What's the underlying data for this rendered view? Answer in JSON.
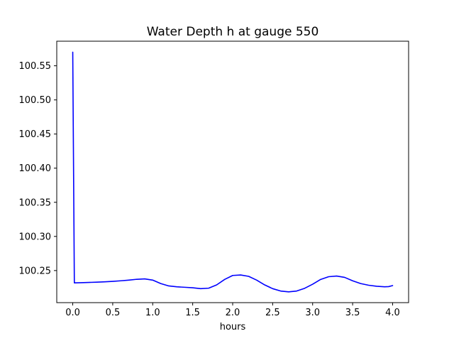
{
  "figure": {
    "background": "#ffffff",
    "axes_color": "#000000"
  },
  "chart_data": {
    "type": "line",
    "title": "Water Depth h at gauge 550",
    "xlabel": "hours",
    "ylabel": "",
    "grid": false,
    "legend": null,
    "xlim": [
      -0.2,
      4.2
    ],
    "ylim": [
      100.203,
      100.586
    ],
    "xticks": [
      0.0,
      0.5,
      1.0,
      1.5,
      2.0,
      2.5,
      3.0,
      3.5,
      4.0
    ],
    "xtick_labels": [
      "0.0",
      "0.5",
      "1.0",
      "1.5",
      "2.0",
      "2.5",
      "3.0",
      "3.5",
      "4.0"
    ],
    "yticks": [
      100.25,
      100.3,
      100.35,
      100.4,
      100.45,
      100.5,
      100.55
    ],
    "ytick_labels": [
      "100.25",
      "100.30",
      "100.35",
      "100.40",
      "100.45",
      "100.50",
      "100.55"
    ],
    "series": [
      {
        "name": "h",
        "color": "#0000ff",
        "line_width": 1.6,
        "x": [
          0.0,
          0.02,
          0.1,
          0.2,
          0.3,
          0.4,
          0.5,
          0.6,
          0.7,
          0.8,
          0.9,
          1.0,
          1.1,
          1.2,
          1.3,
          1.4,
          1.5,
          1.6,
          1.7,
          1.8,
          1.9,
          2.0,
          2.1,
          2.2,
          2.3,
          2.4,
          2.5,
          2.6,
          2.7,
          2.8,
          2.9,
          3.0,
          3.1,
          3.2,
          3.3,
          3.4,
          3.5,
          3.6,
          3.7,
          3.8,
          3.9,
          3.95,
          4.0
        ],
        "y": [
          100.57,
          100.232,
          100.2322,
          100.2326,
          100.233,
          100.2335,
          100.2342,
          100.235,
          100.236,
          100.2372,
          100.2378,
          100.236,
          100.231,
          100.2275,
          100.2262,
          100.2255,
          100.2248,
          100.2235,
          100.2242,
          100.229,
          100.237,
          100.2428,
          100.2435,
          100.2415,
          100.236,
          100.229,
          100.2235,
          100.22,
          100.2188,
          100.22,
          100.224,
          100.23,
          100.237,
          100.241,
          100.242,
          100.24,
          100.235,
          100.231,
          100.2285,
          100.227,
          100.2262,
          100.2265,
          100.228
        ]
      }
    ]
  }
}
